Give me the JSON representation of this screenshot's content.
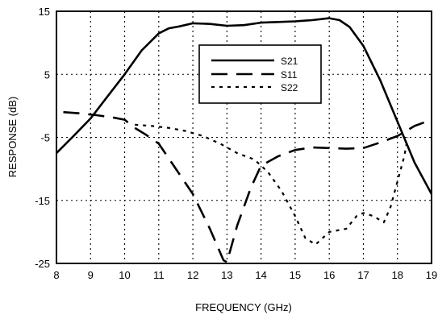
{
  "chart_data": {
    "type": "line",
    "xlabel": "FREQUENCY (GHz)",
    "ylabel": "RESPONSE (dB)",
    "xlim": [
      8,
      19
    ],
    "ylim": [
      -25,
      15
    ],
    "x_ticks": [
      "8",
      "9",
      "10",
      "11",
      "12",
      "13",
      "14",
      "15",
      "16",
      "17",
      "18",
      "19"
    ],
    "y_ticks": [
      "15",
      "5",
      "-5",
      "-15",
      "-25"
    ],
    "grid": true,
    "legend_position": "upper-right",
    "series": [
      {
        "name": "S21",
        "style": "solid",
        "x": [
          8.0,
          8.5,
          9.0,
          9.5,
          10.0,
          10.5,
          11.0,
          11.3,
          11.6,
          12.0,
          12.5,
          13.0,
          13.5,
          14.0,
          14.5,
          15.0,
          15.5,
          16.0,
          16.3,
          16.6,
          17.0,
          17.5,
          18.0,
          18.5,
          19.0
        ],
        "y": [
          -7.5,
          -4.8,
          -2.0,
          1.5,
          5.0,
          8.8,
          11.5,
          12.3,
          12.6,
          13.1,
          13.0,
          12.7,
          12.8,
          13.2,
          13.3,
          13.4,
          13.6,
          13.9,
          13.6,
          12.5,
          9.5,
          4.0,
          -2.5,
          -9.0,
          -14.0
        ]
      },
      {
        "name": "S11",
        "style": "dashed",
        "x": [
          8.2,
          8.7,
          9.2,
          9.7,
          10.0,
          10.3,
          10.6,
          11.0,
          11.5,
          12.0,
          12.5,
          12.9,
          13.0,
          13.3,
          13.7,
          14.0,
          14.5,
          15.0,
          15.5,
          16.0,
          16.5,
          17.0,
          17.5,
          18.0,
          18.5,
          19.0
        ],
        "y": [
          -1.0,
          -1.2,
          -1.5,
          -1.9,
          -2.2,
          -3.5,
          -4.5,
          -6.0,
          -10.0,
          -14.0,
          -19.5,
          -24.5,
          -24.8,
          -19.0,
          -13.0,
          -9.5,
          -8.0,
          -7.0,
          -6.6,
          -6.7,
          -6.8,
          -6.7,
          -5.8,
          -4.8,
          -3.2,
          -2.2
        ]
      },
      {
        "name": "S22",
        "style": "dotted",
        "x": [
          10.3,
          10.8,
          11.3,
          11.8,
          12.3,
          12.8,
          13.3,
          13.8,
          14.2,
          14.6,
          15.0,
          15.3,
          15.6,
          16.0,
          16.5,
          16.8,
          17.0,
          17.3,
          17.6,
          17.8,
          18.0,
          18.2,
          18.3
        ],
        "y": [
          -3.0,
          -3.2,
          -3.5,
          -4.0,
          -4.8,
          -6.0,
          -7.5,
          -8.5,
          -10.5,
          -13.5,
          -17.5,
          -21.0,
          -22.0,
          -20.0,
          -19.5,
          -17.5,
          -17.0,
          -17.5,
          -18.5,
          -16.0,
          -12.0,
          -8.0,
          -5.0
        ]
      }
    ]
  }
}
